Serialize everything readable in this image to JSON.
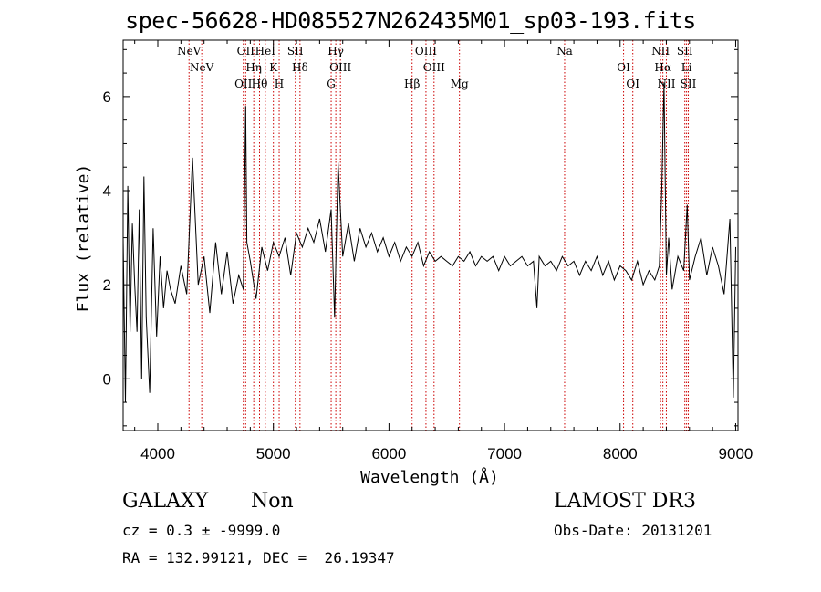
{
  "title": "spec-56628-HD085527N262435M01_sp03-193.fits",
  "info": {
    "class": "GALAXY",
    "subclass": "Non",
    "survey": "LAMOST DR3",
    "cz_line": "cz = 0.3 ± -9999.0",
    "obs_date": "Obs-Date: 20131201",
    "radec_line": "RA = 132.99121, DEC =  26.19347"
  },
  "chart_data": {
    "type": "line",
    "title": "spec-56628-HD085527N262435M01_sp03-193.fits",
    "xlabel": "Wavelength (Å)",
    "ylabel": "Flux (relative)",
    "xlim": [
      3700,
      9020
    ],
    "ylim": [
      -1.1,
      7.2
    ],
    "xticks": [
      4000,
      5000,
      6000,
      7000,
      8000,
      9000
    ],
    "yticks": [
      0,
      2,
      4,
      6
    ],
    "grid": false,
    "line_color": "#000000",
    "marker_color": "#cc0000",
    "spectrum": {
      "x": [
        3700,
        3720,
        3740,
        3760,
        3780,
        3800,
        3820,
        3840,
        3860,
        3880,
        3900,
        3930,
        3960,
        3990,
        4020,
        4050,
        4080,
        4110,
        4150,
        4200,
        4250,
        4300,
        4350,
        4400,
        4450,
        4500,
        4550,
        4600,
        4650,
        4700,
        4740,
        4760,
        4770,
        4800,
        4850,
        4900,
        4950,
        5000,
        5050,
        5100,
        5150,
        5200,
        5250,
        5300,
        5350,
        5400,
        5450,
        5500,
        5530,
        5560,
        5600,
        5650,
        5700,
        5750,
        5800,
        5850,
        5900,
        5950,
        6000,
        6050,
        6100,
        6150,
        6200,
        6250,
        6300,
        6350,
        6400,
        6450,
        6500,
        6550,
        6600,
        6650,
        6700,
        6750,
        6800,
        6850,
        6900,
        6950,
        7000,
        7050,
        7100,
        7150,
        7200,
        7250,
        7280,
        7300,
        7350,
        7400,
        7450,
        7500,
        7550,
        7600,
        7650,
        7700,
        7750,
        7800,
        7850,
        7900,
        7950,
        8000,
        8050,
        8100,
        8150,
        8200,
        8250,
        8300,
        8340,
        8360,
        8380,
        8400,
        8420,
        8450,
        8500,
        8550,
        8580,
        8600,
        8650,
        8700,
        8750,
        8800,
        8850,
        8900,
        8950,
        8980,
        9000
      ],
      "y": [
        3.0,
        -0.5,
        4.1,
        1.0,
        3.3,
        2.0,
        1.0,
        3.6,
        0.0,
        4.3,
        1.3,
        -0.3,
        3.2,
        0.9,
        2.6,
        1.5,
        2.3,
        1.9,
        1.6,
        2.4,
        1.8,
        4.7,
        2.0,
        2.6,
        1.4,
        2.9,
        1.8,
        2.7,
        1.6,
        2.2,
        1.9,
        5.8,
        2.9,
        2.5,
        1.7,
        2.8,
        2.3,
        2.9,
        2.6,
        3.0,
        2.2,
        3.1,
        2.8,
        3.2,
        2.9,
        3.4,
        2.7,
        3.6,
        1.3,
        4.6,
        2.6,
        3.3,
        2.5,
        3.2,
        2.8,
        3.1,
        2.7,
        3.0,
        2.6,
        2.9,
        2.5,
        2.8,
        2.6,
        2.9,
        2.4,
        2.7,
        2.5,
        2.6,
        2.5,
        2.4,
        2.6,
        2.5,
        2.7,
        2.4,
        2.6,
        2.5,
        2.6,
        2.3,
        2.6,
        2.4,
        2.5,
        2.6,
        2.4,
        2.5,
        1.5,
        2.6,
        2.4,
        2.5,
        2.3,
        2.6,
        2.4,
        2.5,
        2.2,
        2.5,
        2.3,
        2.6,
        2.2,
        2.5,
        2.1,
        2.4,
        2.3,
        2.1,
        2.5,
        2.0,
        2.3,
        2.1,
        2.4,
        4.0,
        6.3,
        2.2,
        3.0,
        1.9,
        2.6,
        2.3,
        3.7,
        2.1,
        2.6,
        3.0,
        2.2,
        2.8,
        2.4,
        1.8,
        3.4,
        -0.4,
        2.8
      ]
    },
    "lines": [
      {
        "x": 4270,
        "label": "NeV"
      },
      {
        "x": 4380,
        "label": "NeV"
      },
      {
        "x": 4740,
        "label": "OII"
      },
      {
        "x": 4760,
        "label": "OII"
      },
      {
        "x": 4830,
        "label": "Hη"
      },
      {
        "x": 4880,
        "label": "Hθ"
      },
      {
        "x": 4930,
        "label": "HeI"
      },
      {
        "x": 5000,
        "label": "K"
      },
      {
        "x": 5050,
        "label": "H"
      },
      {
        "x": 5190,
        "label": "SII"
      },
      {
        "x": 5230,
        "label": "Hδ"
      },
      {
        "x": 5500,
        "label": "G"
      },
      {
        "x": 5540,
        "label": "Hγ"
      },
      {
        "x": 5580,
        "label": "OIII"
      },
      {
        "x": 6200,
        "label": "Hβ"
      },
      {
        "x": 6320,
        "label": "OIII"
      },
      {
        "x": 6390,
        "label": "OIII"
      },
      {
        "x": 6610,
        "label": "Mg"
      },
      {
        "x": 7520,
        "label": "Na"
      },
      {
        "x": 8030,
        "label": "OI"
      },
      {
        "x": 8110,
        "label": "OI"
      },
      {
        "x": 8350,
        "label": "NII"
      },
      {
        "x": 8370,
        "label": "Hα"
      },
      {
        "x": 8400,
        "label": "NII"
      },
      {
        "x": 8560,
        "label": "SII"
      },
      {
        "x": 8575,
        "label": "Li"
      },
      {
        "x": 8590,
        "label": "SII"
      }
    ]
  }
}
